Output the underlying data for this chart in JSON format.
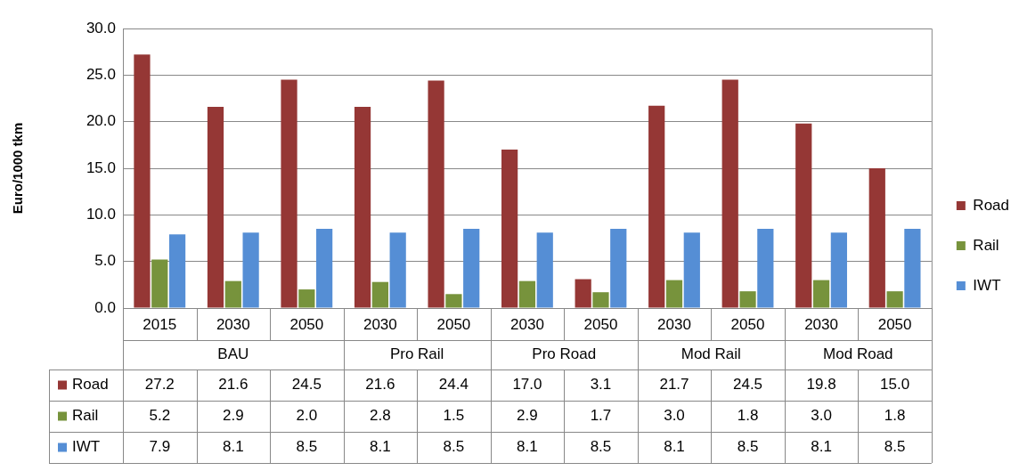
{
  "chart_data": {
    "type": "bar",
    "ylabel": "Euro/1000 tkm",
    "categories": [
      "2015",
      "2030",
      "2050",
      "2030",
      "2050",
      "2030",
      "2050",
      "2030",
      "2050",
      "2030",
      "2050"
    ],
    "annotations": [
      "BAU",
      "Pro Rail",
      "Pro Road",
      "Mod Rail",
      "Mod Road"
    ],
    "series": [
      {
        "name": "Road",
        "color": "#953735",
        "values": [
          27.2,
          21.6,
          24.5,
          21.6,
          24.4,
          17.0,
          3.1,
          21.7,
          24.5,
          19.8,
          15.0
        ],
        "value_labels": [
          "27.2",
          "21.6",
          "24.5",
          "21.6",
          "24.4",
          "17.0",
          "3.1",
          "21.7",
          "24.5",
          "19.8",
          "15.0"
        ]
      },
      {
        "name": "Rail",
        "color": "#77933c",
        "values": [
          5.2,
          2.9,
          2.0,
          2.8,
          1.5,
          2.9,
          1.7,
          3.0,
          1.8,
          3.0,
          1.8
        ],
        "value_labels": [
          "5.2",
          "2.9",
          "2.0",
          "2.8",
          "1.5",
          "2.9",
          "1.7",
          "3.0",
          "1.8",
          "3.0",
          "1.8"
        ]
      },
      {
        "name": "IWT",
        "color": "#558ed5",
        "values": [
          7.9,
          8.1,
          8.5,
          8.1,
          8.5,
          8.1,
          8.5,
          8.1,
          8.5,
          8.1,
          8.5
        ],
        "value_labels": [
          "7.9",
          "8.1",
          "8.5",
          "8.1",
          "8.5",
          "8.1",
          "8.5",
          "8.1",
          "8.5",
          "8.1",
          "8.5"
        ]
      }
    ],
    "ylim": [
      0,
      30
    ],
    "yticks": [
      {
        "value": 0,
        "label": "0.0"
      },
      {
        "value": 5,
        "label": "5.0"
      },
      {
        "value": 10,
        "label": "10.0"
      },
      {
        "value": 15,
        "label": "15.0"
      },
      {
        "value": 20,
        "label": "20.0"
      },
      {
        "value": 25,
        "label": "25.0"
      },
      {
        "value": 30,
        "label": "30.0"
      }
    ],
    "grid": "y",
    "legend": "right"
  }
}
